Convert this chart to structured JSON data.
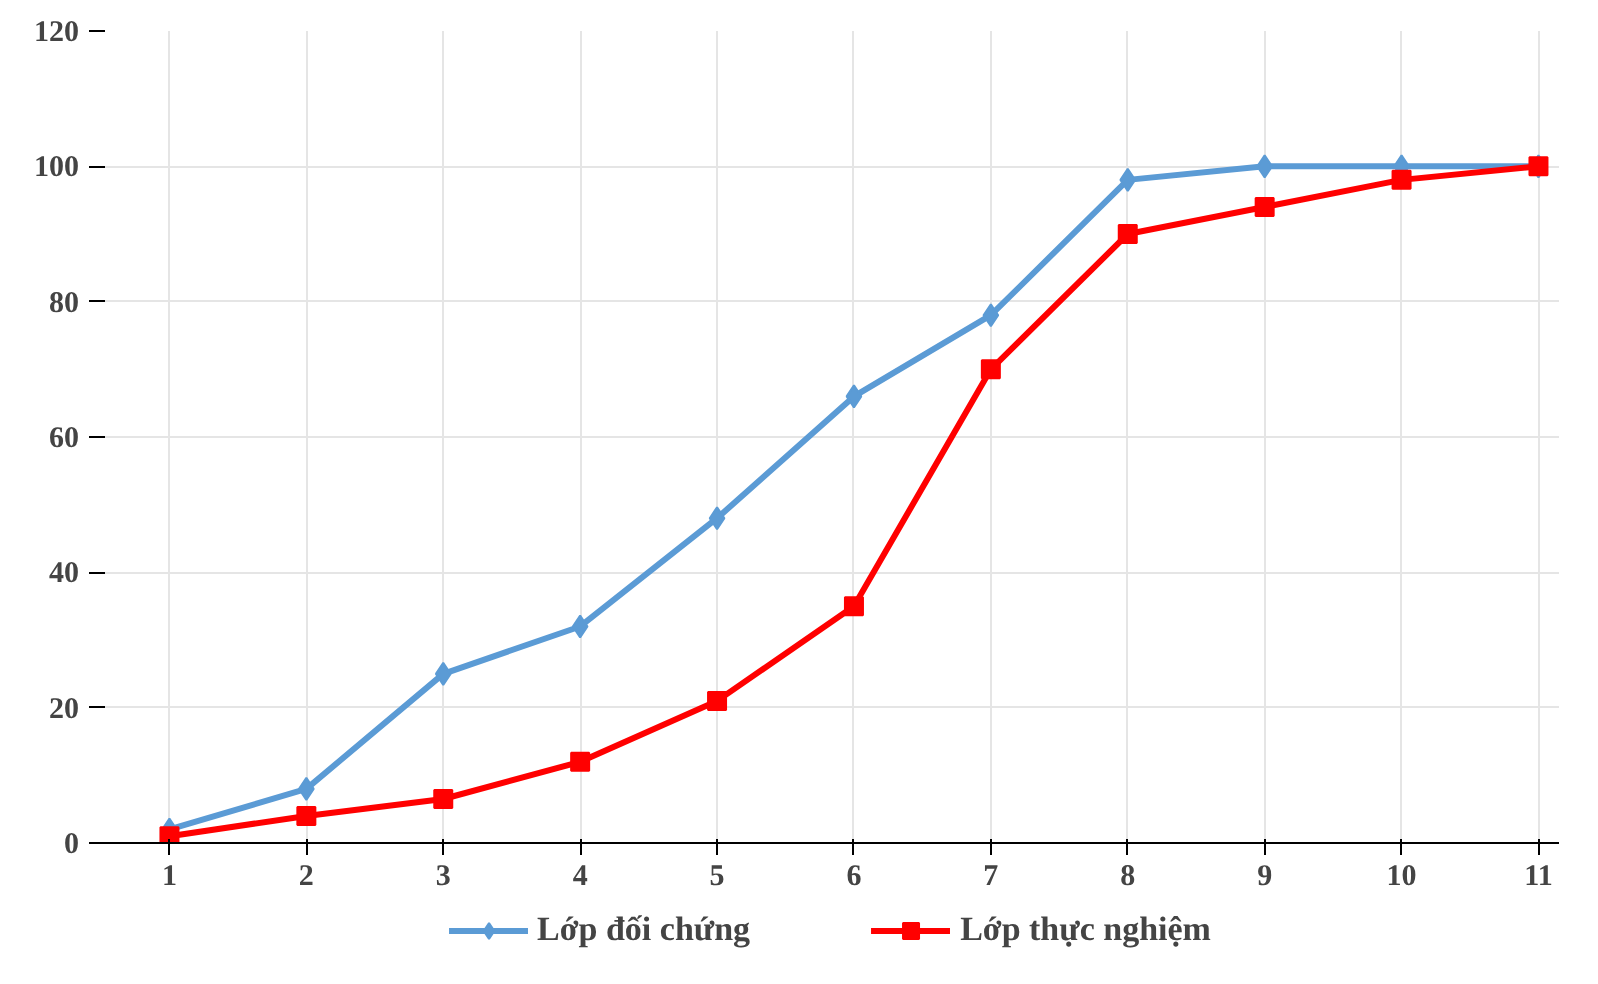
{
  "chart_data": {
    "type": "line",
    "categories": [
      "1",
      "2",
      "3",
      "4",
      "5",
      "6",
      "7",
      "8",
      "9",
      "10",
      "11"
    ],
    "series": [
      {
        "name": "Lớp đối chứng",
        "color": "#5b9bd5",
        "marker": "diamond",
        "values": [
          2,
          8,
          25,
          32,
          48,
          66,
          78,
          98,
          100,
          100,
          100
        ]
      },
      {
        "name": "Lớp thực nghiệm",
        "color": "#ff0000",
        "marker": "square",
        "values": [
          1,
          4,
          6.5,
          12,
          21,
          35,
          70,
          90,
          94,
          98,
          100
        ]
      }
    ],
    "ylim": [
      0,
      120
    ],
    "yticks": [
      0,
      20,
      40,
      60,
      80,
      100,
      120
    ],
    "grid": true,
    "legend": "bottom",
    "line_style": "solid"
  }
}
